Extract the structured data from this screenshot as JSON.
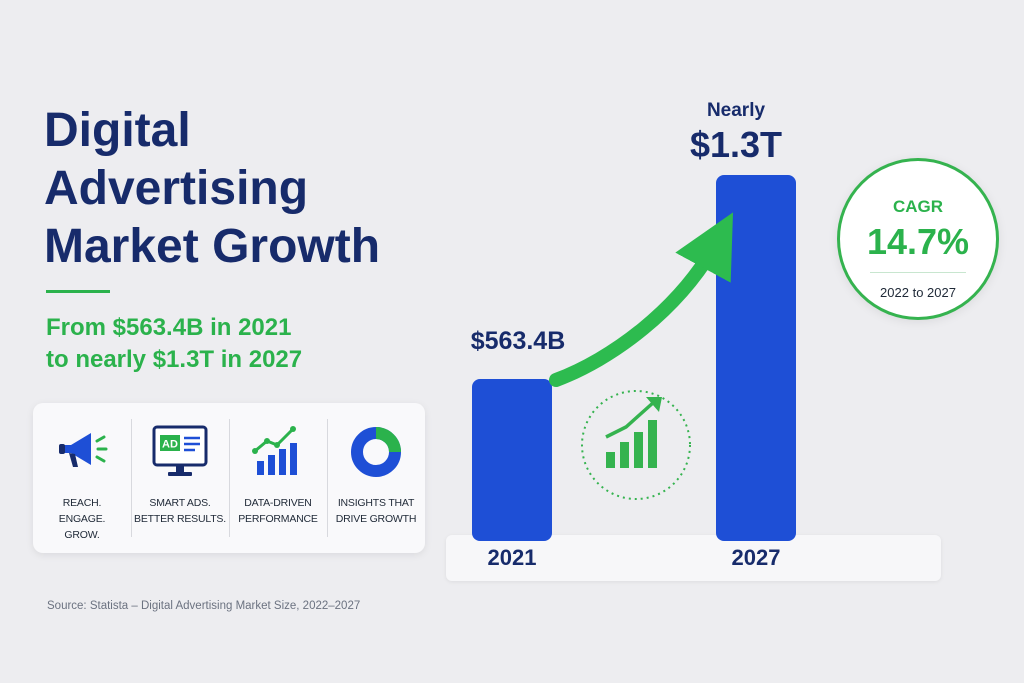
{
  "header": {
    "title_lines": [
      "Digital",
      "Advertising",
      "Market Growth"
    ],
    "subtitle_lines": [
      "From $563.4B in 2021",
      "to nearly $1.3T in 2027"
    ]
  },
  "features": [
    {
      "icon": "megaphone-icon",
      "label_lines": [
        "REACH.",
        "ENGAGE.",
        "GROW."
      ]
    },
    {
      "icon": "ad-monitor-icon",
      "icon_text": "AD",
      "label_lines": [
        "SMART ADS.",
        "BETTER RESULTS."
      ]
    },
    {
      "icon": "bar-chart-growth-icon",
      "label_lines": [
        "DATA-DRIVEN",
        "PERFORMANCE"
      ]
    },
    {
      "icon": "donut-chart-icon",
      "label_lines": [
        "INSIGHTS THAT",
        "DRIVE GROWTH"
      ]
    }
  ],
  "chart_data": {
    "type": "bar",
    "categories": [
      "2021",
      "2027"
    ],
    "values": [
      563.4,
      1300
    ],
    "unit": "billion USD",
    "data_labels": [
      "$563.4B",
      "$1.3T"
    ],
    "data_label_prefix_2027": "Nearly",
    "title": "",
    "xlabel": "",
    "ylabel": "",
    "ylim": [
      0,
      1300
    ],
    "grid": false,
    "bar_color": "#1e4fd6",
    "arrow_color": "#2dbb4f"
  },
  "cagr": {
    "label": "CAGR",
    "value": "14.7%",
    "period": "2022 to 2027"
  },
  "source": "Source: Statista – Digital Advertising Market Size, 2022–2027",
  "colors": {
    "navy": "#172b6b",
    "green": "#2bb24c",
    "blue": "#1e4fd6",
    "background": "#ededf0"
  }
}
